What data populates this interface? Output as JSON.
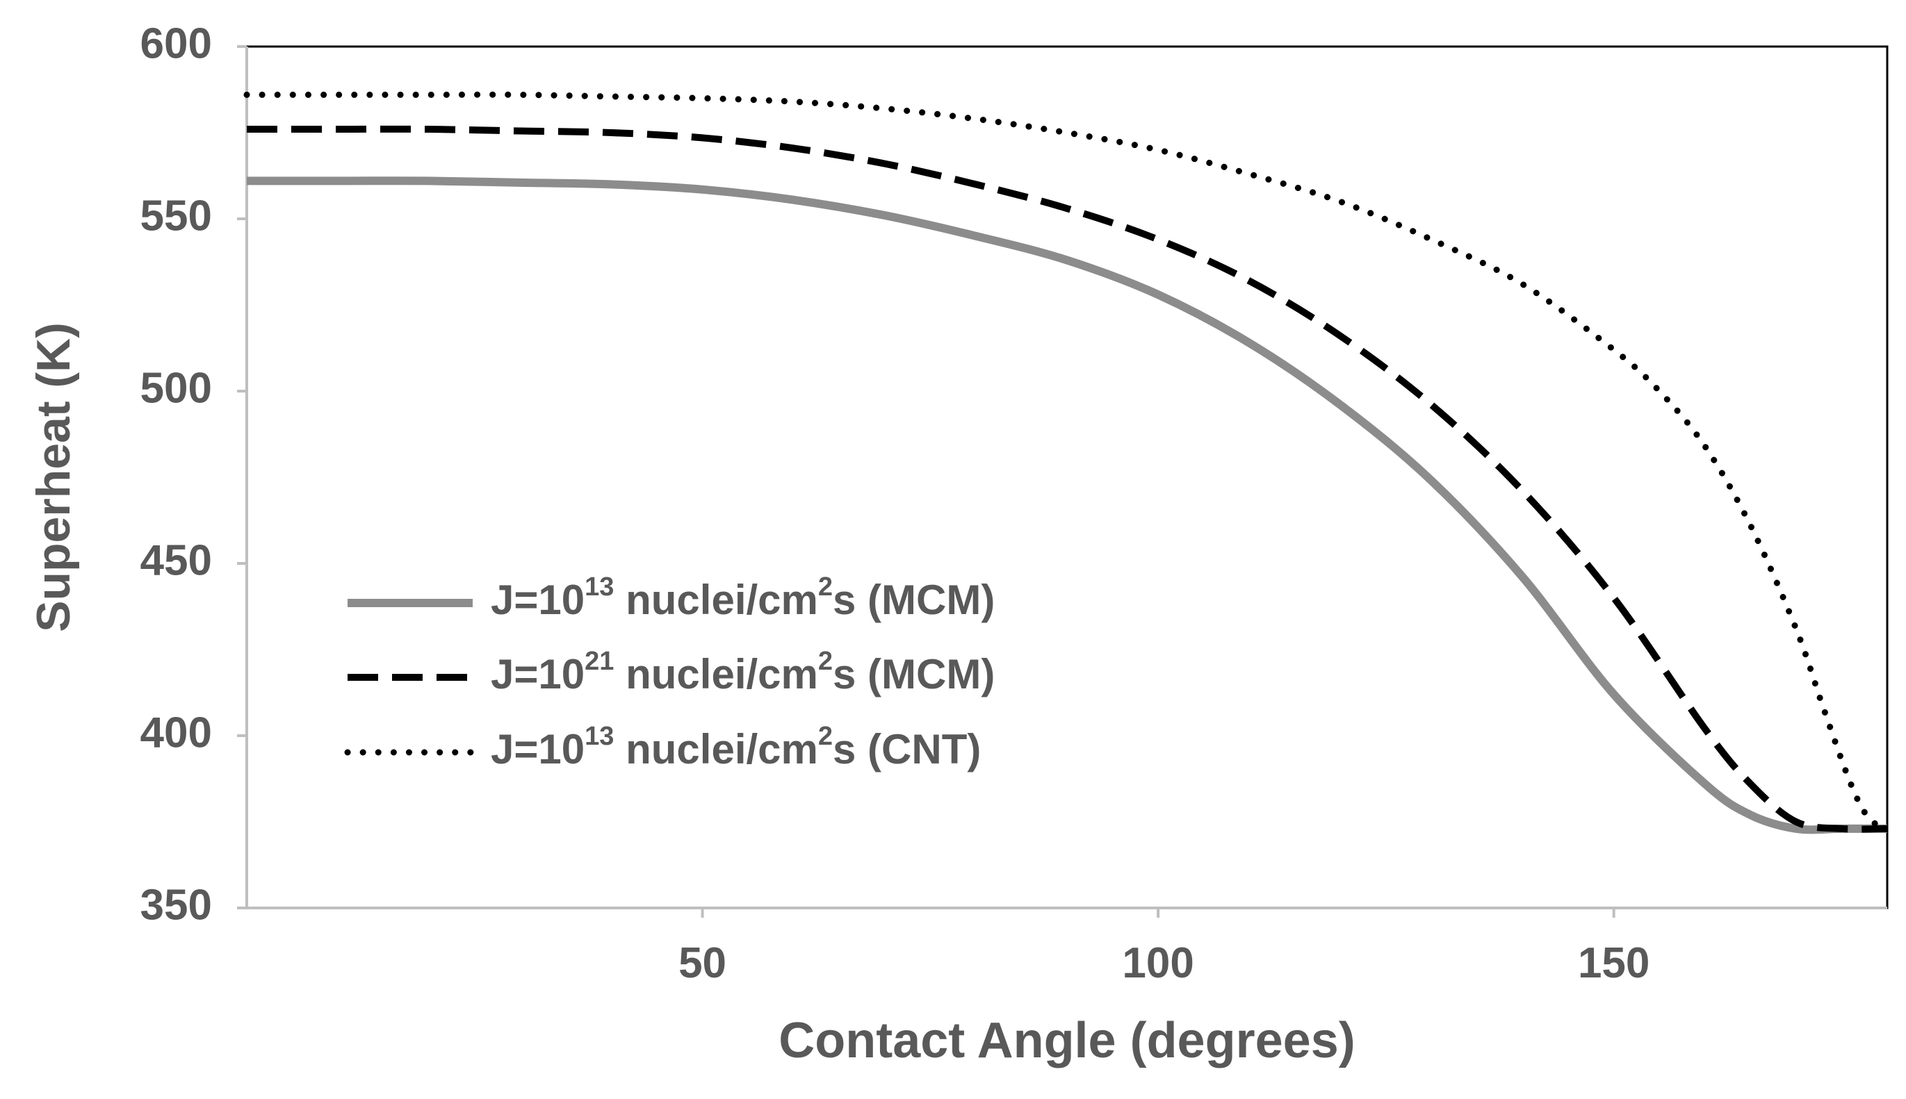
{
  "chart_data": {
    "type": "line",
    "title": "",
    "xlabel": "Contact Angle (degrees)",
    "ylabel": "Superheat (K)",
    "xlim": [
      0,
      180
    ],
    "ylim": [
      350,
      600
    ],
    "x_ticks": [
      50,
      100,
      150
    ],
    "y_ticks": [
      350,
      400,
      450,
      500,
      550,
      600
    ],
    "x_tick_labels": [
      "50",
      "100",
      "150"
    ],
    "y_tick_labels": [
      "350",
      "400",
      "450",
      "500",
      "550",
      "600"
    ],
    "grid": false,
    "legend_position": "center-left",
    "series": [
      {
        "name": "J=10¹³ nuclei/cm²s (MCM)",
        "legend_main": "J=10",
        "legend_sup": "13",
        "legend_tail": " nuclei/cm",
        "legend_sup2": "2",
        "legend_end": "s (MCM)",
        "style": "solid",
        "color": "#8c8c8c",
        "x": [
          0,
          10,
          20,
          30,
          40,
          50,
          60,
          70,
          80,
          90,
          100,
          110,
          120,
          130,
          140,
          150,
          160,
          165,
          170,
          175,
          180
        ],
        "y": [
          561,
          561,
          561,
          560.5,
          560,
          558.5,
          555.5,
          551,
          545,
          538,
          528,
          514,
          496,
          474,
          446,
          412,
          386,
          377,
          373,
          373,
          373
        ]
      },
      {
        "name": "J=10²¹ nuclei/cm²s (MCM)",
        "legend_main": "J=10",
        "legend_sup": "21",
        "legend_tail": " nuclei/cm",
        "legend_sup2": "2",
        "legend_end": "s (MCM)",
        "style": "dashed",
        "color": "#000000",
        "x": [
          0,
          10,
          20,
          30,
          40,
          50,
          60,
          70,
          80,
          90,
          100,
          110,
          120,
          130,
          140,
          150,
          160,
          165,
          170,
          175,
          180
        ],
        "y": [
          576,
          576,
          576,
          575.5,
          575,
          573.5,
          570.5,
          566,
          560,
          553,
          544,
          532,
          516,
          496,
          471,
          440,
          402,
          386,
          375,
          373,
          373
        ]
      },
      {
        "name": "J=10¹³ nuclei/cm²s (CNT)",
        "legend_main": "J=10",
        "legend_sup": "13",
        "legend_tail": " nuclei/cm",
        "legend_sup2": "2",
        "legend_end": "s (CNT)",
        "style": "dotted",
        "color": "#000000",
        "x": [
          0,
          10,
          20,
          30,
          40,
          50,
          60,
          70,
          80,
          90,
          100,
          110,
          120,
          130,
          140,
          150,
          155,
          160,
          165,
          170,
          173,
          176,
          178,
          180
        ],
        "y": [
          586,
          586,
          586,
          586,
          585.5,
          585,
          584,
          582,
          579,
          575,
          570,
          563,
          555,
          544,
          531,
          512,
          500,
          484,
          461,
          431,
          408,
          386,
          376,
          373
        ]
      }
    ]
  }
}
